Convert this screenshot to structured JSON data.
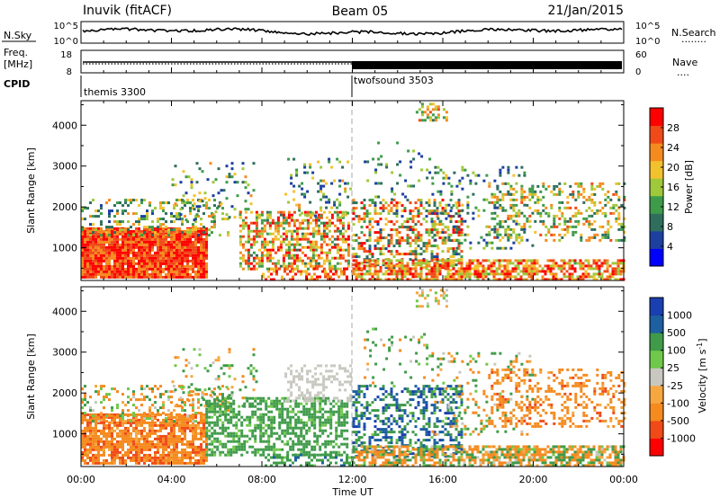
{
  "header": {
    "radar": "Inuvik (fitACF)",
    "beam": "Beam 05",
    "date": "21/Jan/2015"
  },
  "strip_nsky": {
    "left_label": "N.Sky",
    "left_ticks": [
      "10^5",
      "10^0"
    ],
    "right_label": "N.Search",
    "right_ticks": [
      "10^5",
      "10^0"
    ],
    "right_legend": "........"
  },
  "strip_freq": {
    "left_label_1": "Freq.",
    "left_label_2": "[MHz]",
    "left_ticks": [
      "18",
      "8"
    ],
    "right_label": "Nave",
    "right_ticks": [
      "60",
      "0"
    ],
    "right_legend": "...."
  },
  "cpid": {
    "label": "CPID",
    "segments": [
      {
        "name": "themis 3300",
        "start_hour": 0
      },
      {
        "name": "twofsound 3503",
        "start_hour": 12
      }
    ]
  },
  "x_axis": {
    "label": "Time UT",
    "ticks": [
      "00:00",
      "04:00",
      "08:00",
      "12:00",
      "16:00",
      "20:00",
      "00:00"
    ],
    "range_hours": [
      0,
      24
    ]
  },
  "colors": {
    "power_scale": [
      "#0000ff",
      "#1d3fa0",
      "#2f6e5d",
      "#3e9b4a",
      "#9fc83b",
      "#f2c12e",
      "#f58a1f",
      "#f04a18",
      "#ff0000"
    ],
    "velocity_scale": [
      "#ff0000",
      "#f04a18",
      "#f58a1f",
      "#f6a740",
      "#c8c8c0",
      "#6fc84a",
      "#3f9b4a",
      "#1d5fa0",
      "#1a3fb0"
    ]
  },
  "chart_data": [
    {
      "type": "heatmap",
      "panel": "power",
      "title": "",
      "ylabel": "Slant Range [km]",
      "xlabel": "",
      "yticks": [
        "1000",
        "2000",
        "3000",
        "4000"
      ],
      "ylim_km": [
        200,
        4600
      ],
      "colorbar": {
        "label": "Power [dB]",
        "ticks": [
          "4",
          "8",
          "12",
          "16",
          "20",
          "24",
          "28"
        ],
        "range": [
          0,
          32
        ]
      },
      "scatter_regions": [
        {
          "t0": 0.0,
          "t1": 5.6,
          "r0": 300,
          "r1": 1500,
          "v0": 22,
          "v1": 32,
          "d": 0.95
        },
        {
          "t0": 0.0,
          "t1": 6.5,
          "r0": 1300,
          "r1": 2200,
          "v0": 6,
          "v1": 24,
          "d": 0.28
        },
        {
          "t0": 4.0,
          "t1": 7.8,
          "r0": 1700,
          "r1": 3100,
          "v0": 4,
          "v1": 22,
          "d": 0.12
        },
        {
          "t0": 7.0,
          "t1": 11.8,
          "r0": 500,
          "r1": 1900,
          "v0": 10,
          "v1": 32,
          "d": 0.55
        },
        {
          "t0": 9.0,
          "t1": 11.9,
          "r0": 1800,
          "r1": 3200,
          "v0": 4,
          "v1": 22,
          "d": 0.18
        },
        {
          "t0": 8.0,
          "t1": 12.0,
          "r0": 200,
          "r1": 520,
          "v0": 18,
          "v1": 32,
          "d": 0.45
        },
        {
          "t0": 12.0,
          "t1": 16.8,
          "r0": 450,
          "r1": 2200,
          "v0": 6,
          "v1": 32,
          "d": 0.42
        },
        {
          "t0": 12.5,
          "t1": 15.5,
          "r0": 2200,
          "r1": 3600,
          "v0": 4,
          "v1": 16,
          "d": 0.1
        },
        {
          "t0": 12.0,
          "t1": 24.0,
          "r0": 220,
          "r1": 720,
          "v0": 14,
          "v1": 32,
          "d": 0.7
        },
        {
          "t0": 15.5,
          "t1": 20.0,
          "r0": 1000,
          "r1": 3000,
          "v0": 4,
          "v1": 20,
          "d": 0.16
        },
        {
          "t0": 18.0,
          "t1": 24.0,
          "r0": 1200,
          "r1": 2600,
          "v0": 8,
          "v1": 26,
          "d": 0.3
        },
        {
          "t0": 14.8,
          "t1": 16.2,
          "r0": 4150,
          "r1": 4550,
          "v0": 10,
          "v1": 28,
          "d": 0.4
        }
      ]
    },
    {
      "type": "heatmap",
      "panel": "velocity",
      "title": "",
      "ylabel": "Slant Range [km]",
      "xlabel": "Time UT",
      "yticks": [
        "1000",
        "2000",
        "3000",
        "4000"
      ],
      "ylim_km": [
        200,
        4600
      ],
      "colorbar": {
        "label": "Velocity [m s",
        "label_sup": "-1",
        "label_end": "]",
        "ticks": [
          "1000",
          "500",
          "100",
          "25",
          "-25",
          "-100",
          "-500",
          "-1000"
        ],
        "range": [
          -1250,
          1250
        ]
      },
      "scatter_regions": [
        {
          "t0": 0.0,
          "t1": 5.6,
          "r0": 300,
          "r1": 1500,
          "v0": -650,
          "v1": -60,
          "d": 0.8
        },
        {
          "t0": 0.0,
          "t1": 6.5,
          "r0": 1300,
          "r1": 2200,
          "v0": -300,
          "v1": 200,
          "d": 0.28
        },
        {
          "t0": 4.0,
          "t1": 7.8,
          "r0": 1700,
          "r1": 3100,
          "v0": -200,
          "v1": 300,
          "d": 0.12
        },
        {
          "t0": 5.5,
          "t1": 11.8,
          "r0": 500,
          "r1": 1900,
          "v0": 60,
          "v1": 300,
          "d": 0.55
        },
        {
          "t0": 9.0,
          "t1": 11.9,
          "r0": 1800,
          "r1": 2700,
          "v0": -24,
          "v1": 24,
          "d": 0.35
        },
        {
          "t0": 8.0,
          "t1": 12.0,
          "r0": 200,
          "r1": 520,
          "v0": 80,
          "v1": 600,
          "d": 0.45
        },
        {
          "t0": 12.0,
          "t1": 16.8,
          "r0": 450,
          "r1": 2200,
          "v0": 60,
          "v1": 1200,
          "d": 0.42
        },
        {
          "t0": 12.5,
          "t1": 15.5,
          "r0": 2200,
          "r1": 3600,
          "v0": -200,
          "v1": 400,
          "d": 0.1
        },
        {
          "t0": 12.0,
          "t1": 24.0,
          "r0": 220,
          "r1": 720,
          "v0": -500,
          "v1": 300,
          "d": 0.7
        },
        {
          "t0": 15.5,
          "t1": 20.0,
          "r0": 1000,
          "r1": 3000,
          "v0": -400,
          "v1": 300,
          "d": 0.16
        },
        {
          "t0": 18.0,
          "t1": 24.0,
          "r0": 1200,
          "r1": 2600,
          "v0": -600,
          "v1": -30,
          "d": 0.3
        },
        {
          "t0": 14.8,
          "t1": 16.2,
          "r0": 4150,
          "r1": 4550,
          "v0": -100,
          "v1": 100,
          "d": 0.4
        }
      ]
    }
  ]
}
